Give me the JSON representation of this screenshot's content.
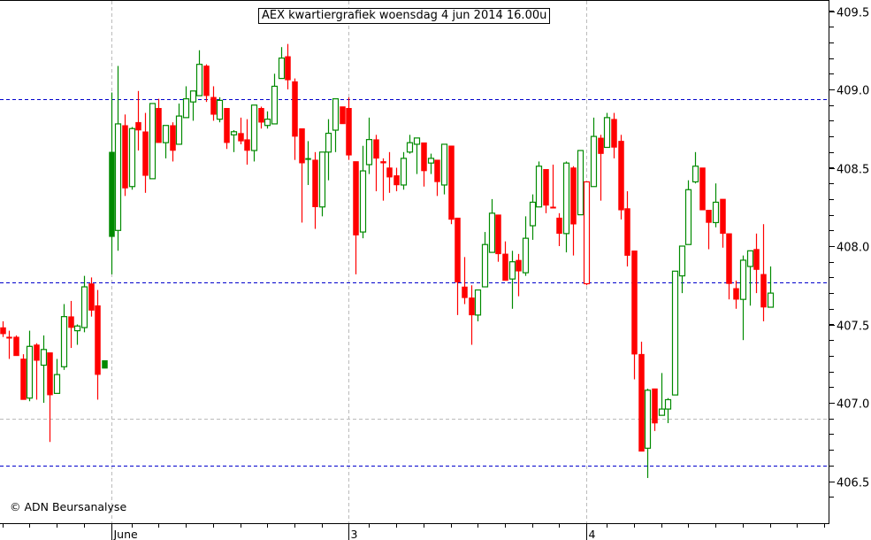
{
  "chart_data": {
    "type": "candlestick",
    "title": "AEX kwartiergrafiek woensdag 4 jun 2014 16.00u",
    "source_label": "© ADN Beursanalyse",
    "xlabel": "",
    "ylabel": "",
    "ylim": [
      406.35,
      409.57
    ],
    "y_ticks": [
      "406.5",
      "407.0",
      "407.5",
      "408.0",
      "408.5",
      "409.0",
      "409.5"
    ],
    "y_minor_step": 0.1,
    "x_day_labels": [
      {
        "label": "June",
        "index": 16
      },
      {
        "label": "3",
        "index": 51
      },
      {
        "label": "4",
        "index": 86
      }
    ],
    "interval": "15 min",
    "reference_lines": [
      {
        "value": 408.94,
        "color": "#0000cc"
      },
      {
        "value": 407.77,
        "color": "#0000cc"
      },
      {
        "value": 406.6,
        "color": "#0000cc"
      }
    ],
    "grid_lines": [
      {
        "value": 406.9,
        "color": "#bbbbbb"
      }
    ],
    "colors": {
      "up": "#008a00",
      "down": "#ff0000",
      "axis": "#000000",
      "grid": "#bbbbbb"
    },
    "candle_fields": [
      "open",
      "high",
      "low",
      "close",
      "style(optional)"
    ],
    "candles": [
      [
        407.48,
        407.52,
        407.42,
        407.44
      ],
      [
        407.42,
        407.46,
        407.28,
        407.42,
        "red"
      ],
      [
        407.42,
        407.43,
        407.3,
        407.3
      ],
      [
        407.28,
        407.31,
        407.02,
        407.02
      ],
      [
        407.03,
        407.46,
        407.01,
        407.36
      ],
      [
        407.37,
        407.38,
        407.02,
        407.27
      ],
      [
        407.24,
        407.43,
        407.0,
        407.34
      ],
      [
        407.32,
        407.32,
        406.75,
        407.05
      ],
      [
        407.06,
        407.28,
        407.06,
        407.18
      ],
      [
        407.23,
        407.63,
        407.21,
        407.55
      ],
      [
        407.55,
        407.65,
        407.35,
        407.48
      ],
      [
        407.46,
        407.5,
        407.37,
        407.49
      ],
      [
        407.48,
        407.81,
        407.45,
        407.74
      ],
      [
        407.76,
        407.8,
        407.55,
        407.59
      ],
      [
        407.62,
        407.72,
        407.02,
        407.18
      ],
      [
        407.22,
        407.27,
        407.22,
        407.27,
        "solid-green"
      ],
      [
        408.06,
        408.98,
        407.82,
        408.6,
        "solid-green"
      ],
      [
        408.1,
        409.15,
        407.97,
        408.78
      ],
      [
        408.77,
        408.84,
        408.32,
        408.37
      ],
      [
        408.38,
        408.76,
        408.36,
        408.75
      ],
      [
        408.79,
        408.99,
        408.61,
        408.74
      ],
      [
        408.73,
        408.85,
        408.34,
        408.45
      ],
      [
        408.43,
        408.91,
        408.43,
        408.91
      ],
      [
        408.88,
        408.94,
        408.66,
        408.66
      ],
      [
        408.66,
        408.77,
        408.56,
        408.77
      ],
      [
        408.77,
        408.79,
        408.54,
        408.61
      ],
      [
        408.65,
        408.91,
        408.65,
        408.83
      ],
      [
        408.82,
        409.02,
        408.82,
        408.94
      ],
      [
        408.92,
        408.99,
        408.8,
        408.99
      ],
      [
        408.96,
        409.25,
        408.96,
        409.16
      ],
      [
        409.15,
        409.16,
        408.92,
        408.96
      ],
      [
        408.95,
        409.02,
        408.8,
        408.84
      ],
      [
        408.81,
        408.95,
        408.79,
        408.93
      ],
      [
        408.88,
        408.88,
        408.62,
        408.66
      ],
      [
        408.71,
        408.74,
        408.6,
        408.73
      ],
      [
        408.72,
        408.82,
        408.65,
        408.67
      ],
      [
        408.68,
        408.81,
        408.52,
        408.61
      ],
      [
        408.61,
        408.9,
        408.54,
        408.9
      ],
      [
        408.88,
        408.89,
        408.75,
        408.79
      ],
      [
        408.77,
        408.86,
        408.75,
        408.81
      ],
      [
        408.78,
        409.1,
        408.78,
        409.02
      ],
      [
        409.07,
        409.27,
        409.07,
        409.2
      ],
      [
        409.21,
        409.29,
        409.0,
        409.06
      ],
      [
        409.05,
        409.07,
        408.55,
        408.7
      ],
      [
        408.75,
        408.75,
        408.15,
        408.53
      ],
      [
        408.56,
        408.67,
        408.39,
        408.56,
        "solid-green"
      ],
      [
        408.55,
        408.6,
        408.11,
        408.25
      ],
      [
        408.25,
        408.6,
        408.19,
        408.6
      ],
      [
        408.6,
        408.81,
        408.42,
        408.72
      ],
      [
        408.74,
        408.94,
        408.6,
        408.94
      ],
      [
        408.89,
        408.89,
        408.78,
        408.78
      ],
      [
        408.88,
        408.95,
        408.55,
        408.58
      ],
      [
        408.54,
        408.54,
        407.82,
        408.07
      ],
      [
        408.09,
        408.64,
        408.05,
        408.48
      ],
      [
        408.52,
        408.82,
        408.46,
        408.68
      ],
      [
        408.68,
        408.71,
        408.35,
        408.56
      ],
      [
        408.54,
        408.56,
        408.29,
        408.53
      ],
      [
        408.5,
        408.6,
        408.34,
        408.44
      ],
      [
        408.45,
        408.5,
        408.35,
        408.39
      ],
      [
        408.39,
        408.6,
        408.36,
        408.56
      ],
      [
        408.6,
        408.71,
        408.59,
        408.66
      ],
      [
        408.65,
        408.69,
        408.46,
        408.69
      ],
      [
        408.66,
        408.66,
        408.38,
        408.48
      ],
      [
        408.53,
        408.59,
        408.46,
        408.56
      ],
      [
        408.55,
        408.55,
        408.32,
        408.41
      ],
      [
        408.39,
        408.65,
        408.33,
        408.65
      ],
      [
        408.64,
        408.64,
        408.14,
        408.17
      ],
      [
        408.18,
        408.18,
        407.56,
        407.77
      ],
      [
        407.74,
        407.93,
        407.63,
        407.67
      ],
      [
        407.67,
        407.75,
        407.37,
        407.56
      ],
      [
        407.56,
        407.72,
        407.52,
        407.72
      ],
      [
        407.74,
        408.09,
        407.74,
        408.01
      ],
      [
        407.96,
        408.3,
        407.96,
        408.21
      ],
      [
        408.2,
        408.2,
        407.9,
        407.95
      ],
      [
        407.95,
        408.03,
        407.78,
        407.78
      ],
      [
        407.79,
        407.97,
        407.6,
        407.9
      ],
      [
        407.91,
        407.95,
        407.68,
        407.84
      ],
      [
        407.83,
        408.19,
        407.81,
        408.05
      ],
      [
        408.13,
        408.33,
        408.04,
        408.28
      ],
      [
        408.25,
        408.54,
        408.25,
        408.51
      ],
      [
        408.49,
        408.49,
        408.21,
        408.26
      ],
      [
        408.25,
        408.52,
        408.25,
        408.25,
        "red"
      ],
      [
        408.18,
        408.21,
        408.0,
        408.08
      ],
      [
        408.08,
        408.54,
        407.96,
        408.53
      ],
      [
        408.5,
        408.51,
        407.94,
        408.14
      ],
      [
        408.2,
        408.61,
        408.2,
        408.61
      ],
      [
        408.41,
        408.41,
        407.75,
        407.76,
        "hollow-red"
      ],
      [
        408.38,
        408.82,
        408.38,
        408.7
      ],
      [
        408.69,
        408.71,
        408.29,
        408.59
      ],
      [
        408.63,
        408.85,
        408.63,
        408.82
      ],
      [
        408.81,
        408.85,
        408.56,
        408.63
      ],
      [
        408.67,
        408.71,
        408.17,
        408.23
      ],
      [
        408.24,
        408.35,
        407.87,
        407.94
      ],
      [
        407.97,
        407.97,
        407.15,
        407.31
      ],
      [
        407.31,
        407.39,
        406.69,
        406.69
      ],
      [
        406.71,
        407.09,
        406.52,
        407.08
      ],
      [
        407.09,
        407.09,
        406.82,
        406.87
      ],
      [
        406.92,
        407.19,
        406.92,
        406.96
      ],
      [
        406.96,
        407.03,
        406.87,
        407.02
      ],
      [
        407.05,
        407.84,
        407.05,
        407.84
      ],
      [
        407.81,
        408.0,
        407.7,
        408.0
      ],
      [
        408.01,
        408.42,
        408.01,
        408.36
      ],
      [
        408.41,
        408.6,
        408.4,
        408.51
      ],
      [
        408.5,
        408.5,
        408.23,
        408.23
      ],
      [
        408.23,
        408.23,
        407.98,
        408.15
      ],
      [
        408.15,
        408.4,
        408.12,
        408.28
      ],
      [
        408.3,
        408.3,
        407.99,
        408.08
      ],
      [
        408.08,
        408.08,
        407.66,
        407.76
      ],
      [
        407.73,
        407.78,
        407.6,
        407.66
      ],
      [
        407.66,
        407.94,
        407.4,
        407.91
      ],
      [
        407.87,
        407.97,
        407.62,
        407.97
      ],
      [
        407.98,
        408.08,
        407.7,
        407.85
      ],
      [
        407.82,
        408.14,
        407.52,
        407.61
      ],
      [
        407.61,
        407.87,
        407.61,
        407.7
      ]
    ]
  }
}
